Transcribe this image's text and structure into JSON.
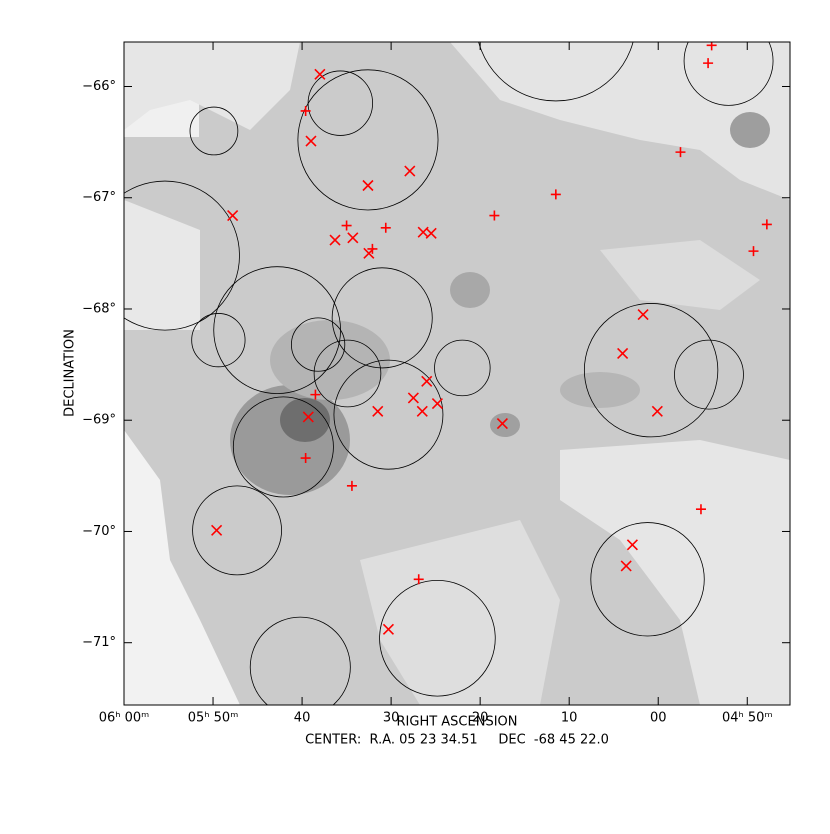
{
  "chart_data": {
    "type": "sky-map",
    "xlabel": "RIGHT ASCENSION",
    "ylabel": "DECLINATION",
    "center_label": "CENTER:  R.A. 05 23 34.51     DEC  -68 45 22.0",
    "xlim": [
      360,
      285.2
    ],
    "ylim": [
      -71.56,
      -65.6
    ],
    "xticks": [
      {
        "value": 360,
        "label": "06ʰ 00ᵐ"
      },
      {
        "value": 350,
        "label": "05ʰ 50ᵐ"
      },
      {
        "value": 340,
        "label": "40"
      },
      {
        "value": 330,
        "label": "30"
      },
      {
        "value": 320,
        "label": "20"
      },
      {
        "value": 310,
        "label": "10"
      },
      {
        "value": 300,
        "label": "00"
      },
      {
        "value": 290,
        "label": "04ʰ 50ᵐ"
      }
    ],
    "yticks": [
      {
        "value": -66,
        "label": "−66°"
      },
      {
        "value": -67,
        "label": "−67°"
      },
      {
        "value": -68,
        "label": "−68°"
      },
      {
        "value": -69,
        "label": "−69°"
      },
      {
        "value": -70,
        "label": "−70°"
      },
      {
        "value": -71,
        "label": "−71°"
      }
    ],
    "circles": {
      "color": "#000000",
      "x": [
        349.9,
        335.7,
        332.6,
        355.4,
        342.8,
        349.4,
        338.2,
        331.0,
        334.9,
        330.3,
        322.0,
        342.1,
        347.3,
        340.2,
        324.8,
        300.8,
        294.3,
        301.2,
        292.1,
        311.5
      ],
      "y": [
        -66.4,
        -66.15,
        -66.48,
        -67.52,
        -68.19,
        -68.28,
        -68.32,
        -68.08,
        -68.58,
        -68.95,
        -68.53,
        -69.24,
        -69.99,
        -71.22,
        -70.96,
        -68.55,
        -68.59,
        -70.43,
        -65.77,
        -65.41
      ],
      "r": [
        0.215,
        0.29,
        0.63,
        0.67,
        0.57,
        0.24,
        0.24,
        0.45,
        0.3,
        0.49,
        0.25,
        0.45,
        0.4,
        0.45,
        0.52,
        0.6,
        0.31,
        0.51,
        0.4,
        0.72
      ]
    },
    "x_marks": {
      "color": "#ff0000",
      "x": [
        338.0,
        339.0,
        332.6,
        327.9,
        347.8,
        336.3,
        334.3,
        326.4,
        325.5,
        332.5,
        301.7,
        304.0,
        300.1,
        326.0,
        327.5,
        331.5,
        326.5,
        324.8,
        317.5,
        339.3,
        349.6,
        302.9,
        303.6,
        330.3
      ],
      "y": [
        -65.89,
        -66.49,
        -66.89,
        -66.76,
        -67.16,
        -67.38,
        -67.36,
        -67.31,
        -67.32,
        -67.5,
        -68.05,
        -68.4,
        -68.92,
        -68.65,
        -68.8,
        -68.92,
        -68.92,
        -68.85,
        -69.03,
        -68.97,
        -69.99,
        -70.12,
        -70.31,
        -70.88
      ]
    },
    "plus_marks": {
      "color": "#ff0000",
      "x": [
        294.0,
        294.4,
        339.6,
        297.5,
        311.5,
        318.4,
        335.0,
        330.6,
        332.1,
        287.8,
        289.3,
        338.5,
        339.6,
        334.4,
        326.9,
        295.2
      ],
      "y": [
        -65.63,
        -65.79,
        -66.22,
        -66.59,
        -66.97,
        -67.16,
        -67.25,
        -67.27,
        -67.46,
        -67.24,
        -67.48,
        -68.77,
        -69.34,
        -69.59,
        -70.43,
        -69.8
      ]
    }
  }
}
